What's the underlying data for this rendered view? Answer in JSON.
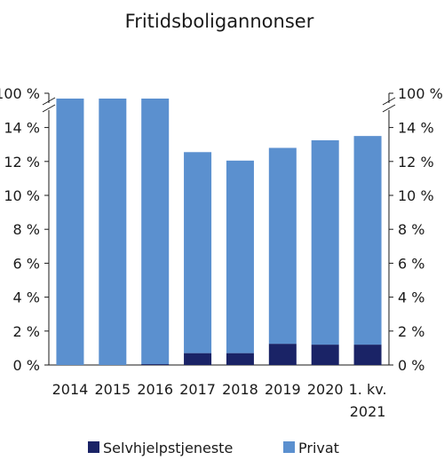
{
  "chart_data": {
    "type": "bar",
    "stacked": true,
    "title": "Fritidsboligannonser",
    "categories": [
      "2014",
      "2015",
      "2016",
      "2017",
      "2018",
      "2019",
      "2020",
      "1. kv. 2021"
    ],
    "series": [
      {
        "name": "Selvhjelpstjeneste",
        "color": "#1a2366",
        "values": [
          0,
          0,
          0.05,
          0.7,
          0.7,
          1.25,
          1.2,
          1.2
        ]
      },
      {
        "name": "Privat",
        "color": "#5b90cf",
        "values": [
          14.2,
          97,
          14.25,
          11.85,
          11.35,
          11.55,
          12.05,
          12.3
        ]
      }
    ],
    "y_ticks": [
      "0 %",
      "2 %",
      "4 %",
      "6 %",
      "8 %",
      "10 %",
      "12 %",
      "14 %",
      "100 %"
    ],
    "ylim": [
      0,
      14
    ],
    "axis_break": true,
    "secondary_axis": true,
    "legend_position": "bottom"
  }
}
